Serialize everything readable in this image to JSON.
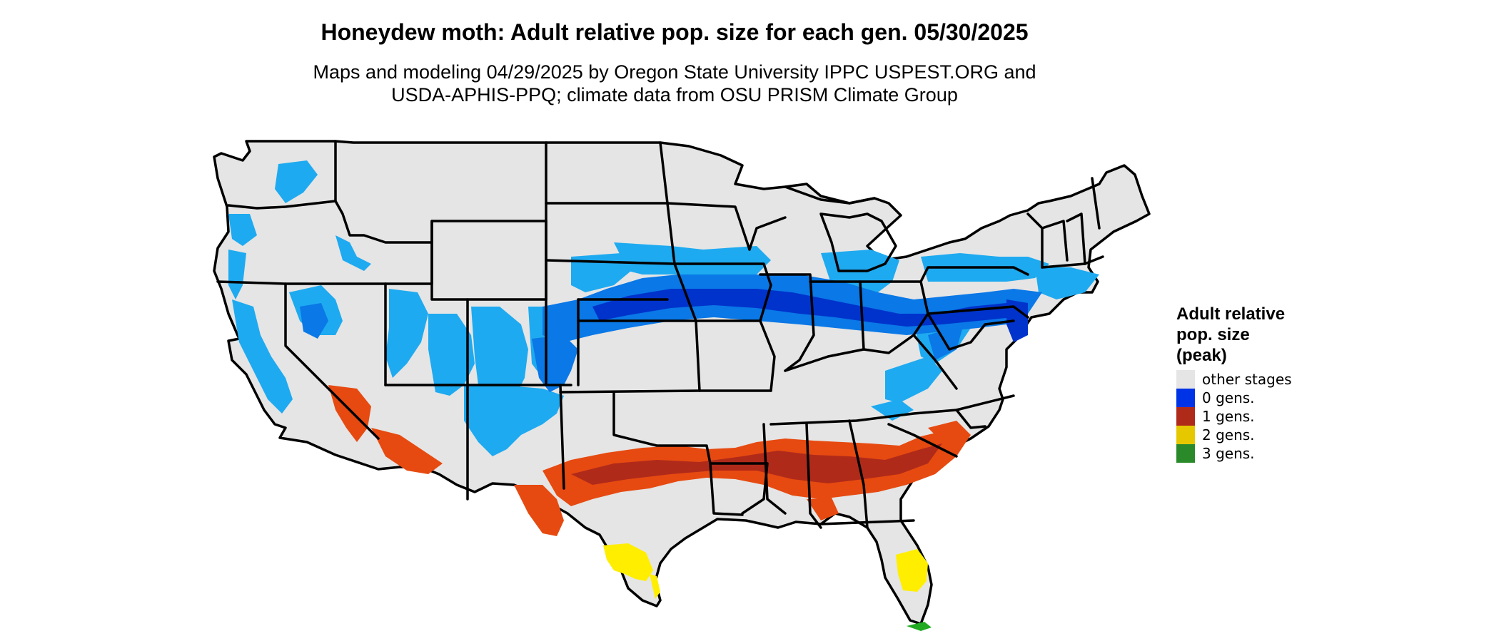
{
  "title": "Honeydew moth: Adult relative pop. size for each gen. 05/30/2025",
  "subtitle_line1": "Maps and modeling 04/29/2025 by Oregon State University IPPC USPEST.ORG and",
  "subtitle_line2": "USDA-APHIS-PPQ; climate data from OSU PRISM Climate Group",
  "legend": {
    "title": "Adult relative\npop. size\n(peak)",
    "items": [
      {
        "label": "other stages",
        "color": "#e5e5e5"
      },
      {
        "label": "0 gens.",
        "color": "#0033e6"
      },
      {
        "label": "1 gens.",
        "color": "#b02a1a"
      },
      {
        "label": "2 gens.",
        "color": "#e6c800"
      },
      {
        "label": "3 gens.",
        "color": "#2a8a2a"
      }
    ]
  },
  "map_colors": {
    "land": "#e5e5e5",
    "light_blue": "#1eaaf0",
    "mid_blue": "#0a78e6",
    "dark_blue": "#0033cc",
    "orange_red": "#e64a10",
    "dark_red": "#b02a1a",
    "yellow": "#ffee00",
    "green": "#22aa22",
    "border": "#000000"
  }
}
